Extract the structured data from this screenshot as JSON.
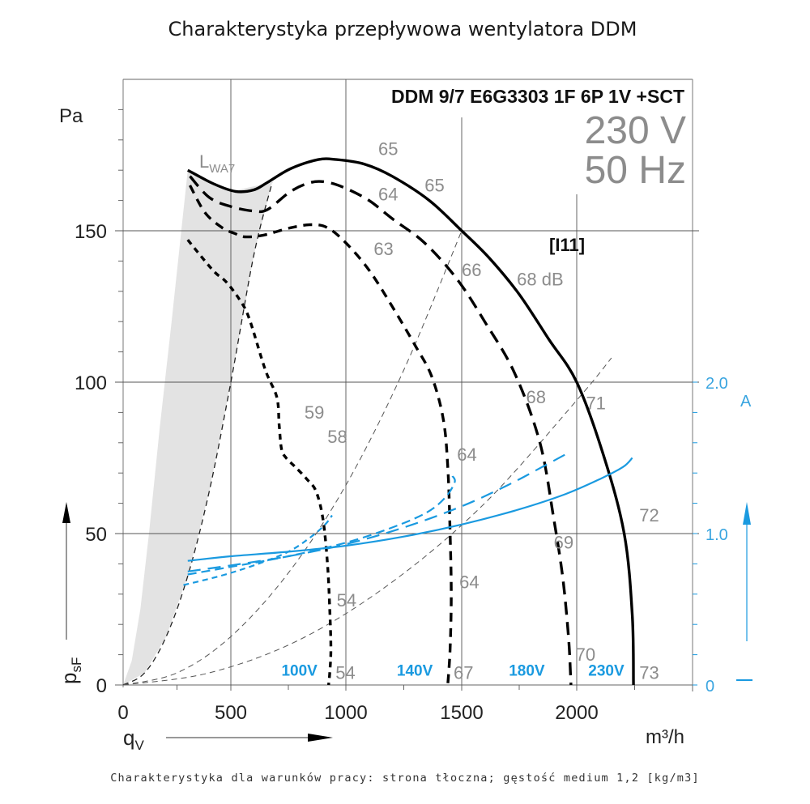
{
  "title": "Charakterystyka przepływowa wentylatora DDM",
  "caption": "Charakterystyka dla warunków pracy: strona tłoczna; gęstość medium 1,2 [kg/m3]",
  "chart_data": {
    "type": "line",
    "title": "Charakterystyka przepływowa wentylatora DDM",
    "model": "DDM 9/7 E6G3303 1F 6P 1V +SCT",
    "voltage": "230 V",
    "frequency": "50 Hz",
    "curve_id": "[I11]",
    "xlabel": "q",
    "xlabel_sub": "V",
    "x_unit": "m³/h",
    "ylabel": "p",
    "ylabel_sub": "sF",
    "y_unit": "Pa",
    "y2_unit": "A",
    "xlim": [
      0,
      2500
    ],
    "ylim": [
      0,
      200
    ],
    "y2lim": [
      0,
      4.0
    ],
    "x_ticks": [
      0,
      500,
      1000,
      1500,
      2000
    ],
    "x_tick_labels": [
      "0",
      "500",
      "1000",
      "1500",
      "2000"
    ],
    "y_ticks": [
      0,
      50,
      100,
      150
    ],
    "y_tick_labels": [
      "0",
      "50",
      "100",
      "150"
    ],
    "y2_ticks": [
      0,
      1.0,
      2.0
    ],
    "y2_tick_labels": [
      "0",
      "1.0",
      "2.0"
    ],
    "grid": true,
    "lwa_label": "L",
    "lwa_sub": "WA7",
    "pressure_series": [
      {
        "name": "230V",
        "style": "solid",
        "x": [
          300,
          420,
          520,
          600,
          660,
          760,
          880,
          960,
          1080,
          1200,
          1360,
          1500,
          1620,
          1750,
          1880,
          2000,
          2115,
          2205,
          2240,
          2245
        ],
        "y": [
          170,
          165.5,
          163,
          163.5,
          166,
          170.5,
          173.5,
          173.5,
          172,
          168,
          160,
          150,
          141,
          129,
          114,
          100,
          76,
          50,
          23,
          0
        ]
      },
      {
        "name": "180V",
        "style": "dashed",
        "x": [
          310,
          400,
          500,
          600,
          660,
          760,
          850,
          920,
          1000,
          1100,
          1200,
          1340,
          1480,
          1600,
          1730,
          1840,
          1900,
          1940,
          1965,
          1975
        ],
        "y": [
          168,
          161,
          158,
          156.5,
          157,
          163,
          166,
          166,
          164,
          160,
          154,
          146,
          134,
          120,
          103,
          80,
          55,
          35,
          15,
          0
        ]
      },
      {
        "name": "140V",
        "style": "dashed",
        "x": [
          310,
          380,
          460,
          520,
          560,
          640,
          760,
          850,
          920,
          1000,
          1100,
          1200,
          1300,
          1370,
          1420,
          1440,
          1450,
          1455,
          1450,
          1440
        ],
        "y": [
          165,
          156,
          151,
          149,
          148,
          148.5,
          151,
          152,
          151,
          146,
          137,
          125,
          112,
          102,
          88,
          72,
          50,
          30,
          12,
          0
        ]
      },
      {
        "name": "100V",
        "style": "dotted",
        "x": [
          300,
          380,
          430,
          480,
          540,
          580,
          650,
          700,
          710,
          720,
          740,
          780,
          830,
          870,
          900,
          920,
          930,
          935,
          930,
          925
        ],
        "y": [
          147,
          140,
          136,
          133,
          127,
          121,
          104,
          95,
          86,
          78,
          75,
          72,
          68,
          64,
          55,
          40,
          25,
          12,
          4,
          0
        ]
      }
    ],
    "system_curves": [
      {
        "name": "boundary",
        "x": [
          0,
          100,
          200,
          300,
          400,
          500,
          600,
          680
        ],
        "y": [
          0,
          4,
          16,
          36,
          64,
          100,
          142,
          166
        ]
      },
      {
        "name": "system-1",
        "x": [
          0,
          250,
          500,
          750,
          1000,
          1250,
          1500
        ],
        "y": [
          0,
          4,
          16,
          37,
          66,
          104,
          150
        ]
      },
      {
        "name": "system-2",
        "x": [
          0,
          400,
          800,
          1200,
          1600,
          2000,
          2150
        ],
        "y": [
          0,
          4,
          15,
          34,
          60,
          94,
          108
        ]
      }
    ],
    "current_series": [
      {
        "name": "230V",
        "style": "solid",
        "x": [
          300,
          500,
          750,
          1000,
          1250,
          1500,
          1750,
          1950,
          2100,
          2200,
          2240
        ],
        "y": [
          0.82,
          0.85,
          0.88,
          0.92,
          0.98,
          1.06,
          1.16,
          1.26,
          1.36,
          1.44,
          1.5
        ]
      },
      {
        "name": "180V",
        "style": "dashed",
        "x": [
          300,
          500,
          750,
          1000,
          1250,
          1500,
          1700,
          1850,
          1960
        ],
        "y": [
          0.75,
          0.79,
          0.85,
          0.93,
          1.04,
          1.18,
          1.32,
          1.44,
          1.53
        ]
      },
      {
        "name": "140V",
        "style": "dashed",
        "x": [
          300,
          500,
          750,
          1000,
          1200,
          1350,
          1430,
          1470,
          1460
        ],
        "y": [
          0.73,
          0.78,
          0.85,
          0.94,
          1.04,
          1.14,
          1.24,
          1.34,
          1.38
        ]
      },
      {
        "name": "100V",
        "style": "dotted",
        "x": [
          280,
          450,
          600,
          750,
          850,
          910,
          940
        ],
        "y": [
          0.66,
          0.72,
          0.79,
          0.88,
          0.98,
          1.06,
          1.12
        ]
      }
    ],
    "db_labels": [
      {
        "text": "65",
        "x": 1140,
        "y": 175
      },
      {
        "text": "65",
        "x": 1340,
        "y": 163
      },
      {
        "text": "64",
        "x": 1140,
        "y": 160
      },
      {
        "text": "63",
        "x": 1120,
        "y": 142
      },
      {
        "text": "66",
        "x": 1500,
        "y": 135
      },
      {
        "text": "68 dB",
        "x": 1740,
        "y": 132
      },
      {
        "text": "68",
        "x": 1780,
        "y": 93
      },
      {
        "text": "71",
        "x": 2040,
        "y": 91
      },
      {
        "text": "59",
        "x": 820,
        "y": 88
      },
      {
        "text": "58",
        "x": 920,
        "y": 80
      },
      {
        "text": "64",
        "x": 1480,
        "y": 74
      },
      {
        "text": "72",
        "x": 2270,
        "y": 54
      },
      {
        "text": "69",
        "x": 1900,
        "y": 45
      },
      {
        "text": "64",
        "x": 1490,
        "y": 32
      },
      {
        "text": "54",
        "x": 960,
        "y": 26
      },
      {
        "text": "70",
        "x": 1995,
        "y": 8
      },
      {
        "text": "54",
        "x": 955,
        "y": 2
      },
      {
        "text": "67",
        "x": 1465,
        "y": 2
      },
      {
        "text": "73",
        "x": 2270,
        "y": 2
      }
    ],
    "voltage_labels": [
      {
        "text": "100V",
        "x": 720,
        "y": 2
      },
      {
        "text": "140V",
        "x": 1220,
        "y": 2
      },
      {
        "text": "180V",
        "x": 1705,
        "y": 2
      },
      {
        "text": "230V",
        "x": 2050,
        "y": 2
      }
    ],
    "colors": {
      "black": "#000000",
      "blue": "#1a9ae0",
      "grey_text": "#8c8c8c",
      "grid": "#555555",
      "shade": "#e3e3e3"
    }
  }
}
